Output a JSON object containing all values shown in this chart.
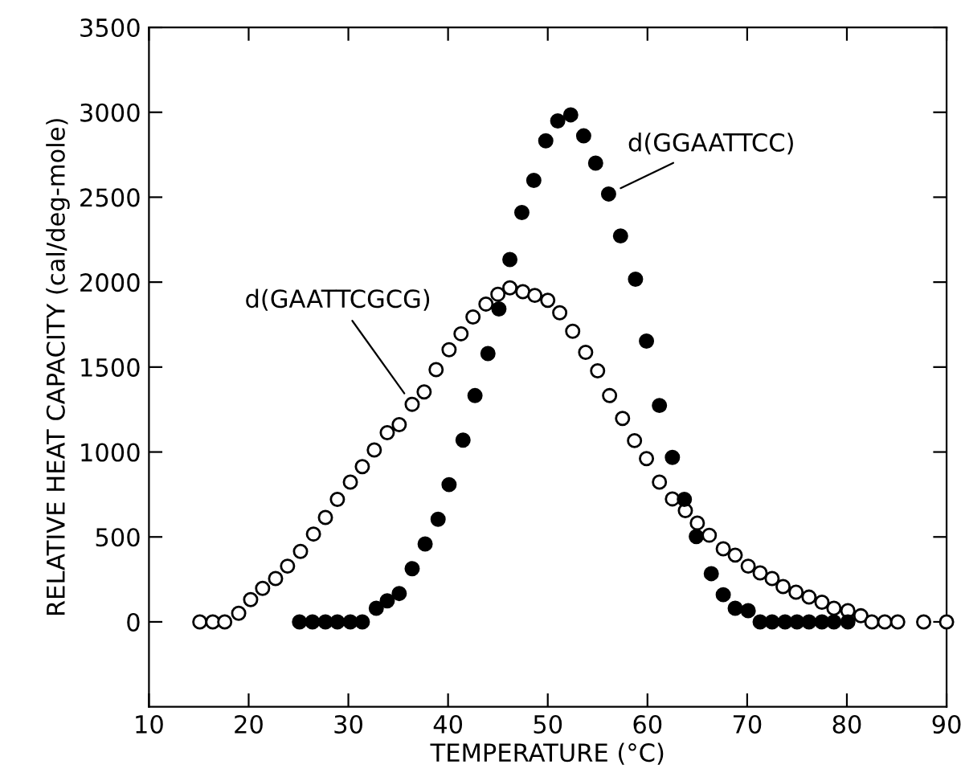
{
  "chart_data": {
    "type": "scatter",
    "xlabel": "TEMPERATURE (°C)",
    "ylabel": "RELATIVE HEAT CAPACITY (cal/deg-mole)",
    "xlim": [
      10,
      90
    ],
    "xticks": [
      10,
      20,
      30,
      40,
      50,
      60,
      70,
      80,
      90
    ],
    "ylim": [
      -500,
      3500
    ],
    "yticks": [
      0,
      500,
      1000,
      1500,
      2000,
      2500,
      3000,
      3500
    ],
    "marker": "circle",
    "grid": false,
    "legend": false,
    "series": [
      {
        "name": "d(GAATTCGCG)",
        "color": "#ffffff",
        "x": [
          15.1,
          16.4,
          17.6,
          19.0,
          20.2,
          21.4,
          22.7,
          23.9,
          25.2,
          26.5,
          27.7,
          28.9,
          30.2,
          31.4,
          32.6,
          33.9,
          35.1,
          36.4,
          37.6,
          38.8,
          40.1,
          41.3,
          42.5,
          43.8,
          45.0,
          46.2,
          47.5,
          48.7,
          50.0,
          51.2,
          52.5,
          53.8,
          55.0,
          56.2,
          57.5,
          58.7,
          59.9,
          61.2,
          62.5,
          63.8,
          65.0,
          66.2,
          67.6,
          68.8,
          70.1,
          71.3,
          72.5,
          73.6,
          74.9,
          76.2,
          77.5,
          78.7,
          80.1,
          81.4,
          82.5,
          83.8,
          85.1,
          87.7,
          90.0
        ],
        "values": [
          0,
          0,
          0,
          51,
          131,
          197,
          255,
          328,
          415,
          517,
          615,
          721,
          823,
          914,
          1012,
          1114,
          1161,
          1281,
          1354,
          1485,
          1602,
          1696,
          1795,
          1871,
          1929,
          1966,
          1944,
          1922,
          1893,
          1820,
          1711,
          1587,
          1478,
          1332,
          1198,
          1067,
          961,
          823,
          724,
          655,
          582,
          510,
          430,
          393,
          328,
          288,
          255,
          208,
          175,
          146,
          116,
          80,
          66,
          36,
          0,
          0,
          0,
          0,
          0
        ]
      },
      {
        "name": "d(GGAATTCC)",
        "color": "#000000",
        "x": [
          25.1,
          26.4,
          27.7,
          28.9,
          30.2,
          31.4,
          32.8,
          33.9,
          35.1,
          36.4,
          37.7,
          39.0,
          40.1,
          41.5,
          42.7,
          44.0,
          45.1,
          46.2,
          47.4,
          48.6,
          49.8,
          51.0,
          52.3,
          53.6,
          54.8,
          56.1,
          57.3,
          58.8,
          59.9,
          61.2,
          62.5,
          63.7,
          64.9,
          66.4,
          67.6,
          68.8,
          70.1,
          71.3,
          72.5,
          73.8,
          75.0,
          76.2,
          77.5,
          78.7,
          80.1
        ],
        "values": [
          0,
          0,
          0,
          0,
          0,
          0,
          80,
          124,
          167,
          313,
          459,
          604,
          808,
          1070,
          1332,
          1580,
          1842,
          2133,
          2410,
          2599,
          2832,
          2949,
          2985,
          2861,
          2701,
          2519,
          2272,
          2017,
          1653,
          1274,
          968,
          721,
          502,
          284,
          160,
          80,
          66,
          0,
          0,
          0,
          0,
          0,
          0,
          0,
          0
        ]
      }
    ]
  }
}
